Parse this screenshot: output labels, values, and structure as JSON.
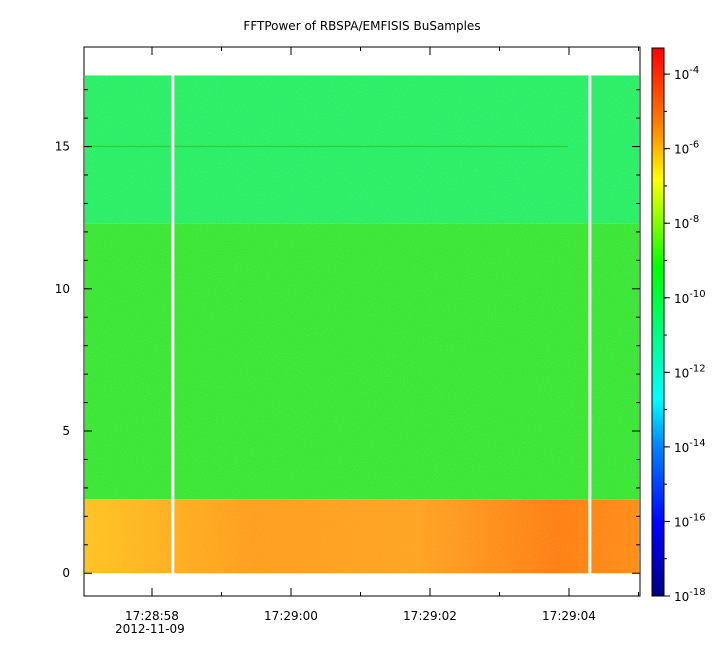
{
  "chart_data": {
    "type": "heatmap",
    "title": "FFTPower of RBSPA/EMFISIS  BuSamples",
    "xlabel": "",
    "ylabel": "",
    "x_ticks": [
      "17:28:58",
      "17:29:00",
      "17:29:02",
      "17:29:04"
    ],
    "x_date_label": "2012-11-09",
    "y_ticks": [
      0,
      5,
      10,
      15
    ],
    "ylim": [
      -0.8,
      18.5
    ],
    "color_scale": "log",
    "colorbar_ticks": [
      "10",
      "10",
      "10",
      "10",
      "10",
      "10",
      "10",
      "10"
    ],
    "colorbar_exponents": [
      "-4",
      "-6",
      "-8",
      "-10",
      "-12",
      "-14",
      "-16",
      "-18"
    ],
    "colorbar_range": [
      "1e-18",
      "1e-3.3"
    ],
    "grid": false,
    "regions": [
      {
        "y_range": [
          12.3,
          17.5
        ],
        "level": "1e-11",
        "color": "#22ee66"
      },
      {
        "y_range": [
          2.6,
          12.3
        ],
        "level": "1e-10",
        "color": "#33e533"
      },
      {
        "y_range": [
          0,
          2.6
        ],
        "level": "1e-8",
        "color": "#ff9a1a"
      }
    ],
    "gap_times": [
      "17:28:58.3",
      "17:29:04.3"
    ]
  }
}
